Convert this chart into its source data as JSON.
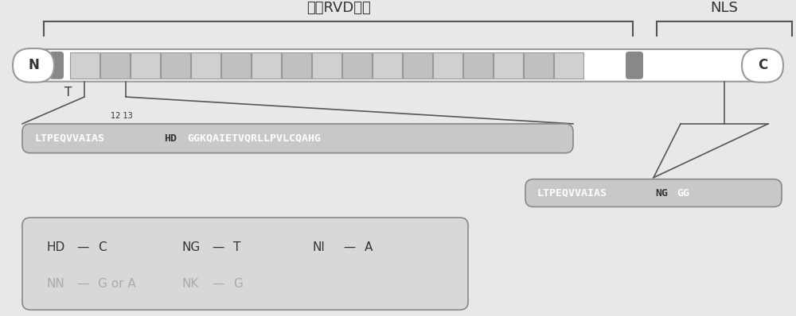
{
  "title": "合成RVD模体",
  "nls_label": "NLS",
  "n_label": "N",
  "c_label": "C",
  "t_label": "T",
  "pos_labels": [
    "12",
    "13"
  ],
  "seq1": "LTPEQVVAIAS",
  "seq1_highlight": "HD",
  "seq1_rest": "GGKQAIETVQRLLPVLCQAHG",
  "seq2": "LTPEQVVAIAS",
  "seq2_highlight": "NG",
  "seq2_rest": "GG",
  "legend_items": [
    {
      "code": "HD",
      "dash": "—",
      "base": "C",
      "faded": false
    },
    {
      "code": "NG",
      "dash": "—",
      "base": "T",
      "faded": false
    },
    {
      "code": "NI",
      "dash": "—",
      "base": "A",
      "faded": false
    },
    {
      "code": "NN",
      "dash": "—",
      "base": "G or A",
      "faded": true
    },
    {
      "code": "NK",
      "dash": "—",
      "base": "G",
      "faded": true
    }
  ],
  "bg_color": "#e8e8e8",
  "bar_light": "#d0d0d0",
  "bar_dark": "#888888",
  "bar_white": "#ffffff",
  "seq_box_bg": "#c8c8c8",
  "legend_box_bg": "#d8d8d8",
  "text_white": "#ffffff",
  "text_dark": "#333333",
  "text_faded": "#aaaaaa",
  "line_color": "#555555"
}
